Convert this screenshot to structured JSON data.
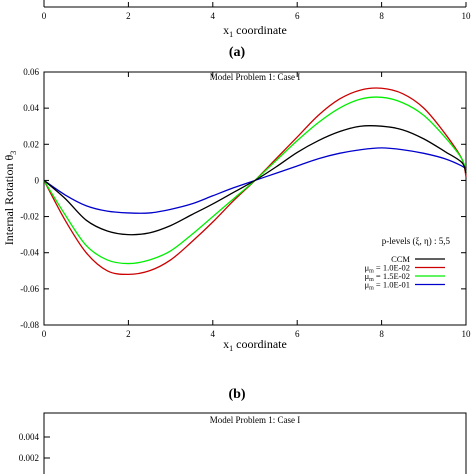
{
  "top_panel": {
    "x_ticks": [
      "0",
      "2",
      "4",
      "6",
      "8",
      "10"
    ],
    "xlabel_main": "x",
    "xlabel_sub": "1",
    "xlabel_rest": " coordinate",
    "caption": "(a)"
  },
  "middle_panel": {
    "caption": "(b)",
    "xlabel_main": "x",
    "xlabel_sub": "1",
    "xlabel_rest": " coordinate",
    "ylabel_main": "Internal Rotation θ",
    "ylabel_sub": "3",
    "legend": {
      "title": "p-levels (ξ, η) : 5,5",
      "entries": [
        {
          "pre": "",
          "sym": "",
          "sub": "",
          "label": "CCM",
          "color": "#000000"
        },
        {
          "pre": "",
          "sym": "μ",
          "sub": "m",
          "label": " = 1.0E-02",
          "color": "#cc0000"
        },
        {
          "pre": "",
          "sym": "μ",
          "sub": "m",
          "label": " = 1.5E-02",
          "color": "#00ee00"
        },
        {
          "pre": "",
          "sym": "μ",
          "sub": "m",
          "label": " = 1.0E-01",
          "color": "#0000cc"
        }
      ]
    }
  },
  "bottom_panel": {
    "title": "Model Problem 1: Case I",
    "y_ticks": [
      "0.004",
      "0.002"
    ]
  },
  "chart_data": {
    "type": "line",
    "title": "Model Problem 1: Case I",
    "xlabel": "x1 coordinate",
    "ylabel": "Internal Rotation θ3",
    "xlim": [
      0,
      10
    ],
    "ylim": [
      -0.08,
      0.06
    ],
    "x_ticks": [
      0,
      2,
      4,
      6,
      8,
      10
    ],
    "y_ticks": [
      -0.08,
      -0.06,
      -0.04,
      -0.02,
      0,
      0.02,
      0.04,
      0.06
    ],
    "x_tick_labels": [
      "0",
      "2",
      "4",
      "6",
      "8",
      "10"
    ],
    "y_tick_labels": [
      "-0.08",
      "-0.06",
      "-0.04",
      "-0.02",
      "0",
      "0.02",
      "0.04",
      "0.06"
    ],
    "x": [
      0,
      0.5,
      1,
      1.5,
      2,
      2.5,
      3,
      3.5,
      4,
      4.5,
      5,
      5.5,
      6,
      6.5,
      7,
      7.5,
      8,
      8.5,
      9,
      9.5,
      9.9,
      10
    ],
    "series": [
      {
        "name": "CCM",
        "color": "#000000",
        "values": [
          0,
          -0.01,
          -0.022,
          -0.028,
          -0.03,
          -0.029,
          -0.025,
          -0.019,
          -0.013,
          -0.0065,
          0,
          0.0075,
          0.0155,
          0.022,
          0.027,
          0.03,
          0.03,
          0.028,
          0.023,
          0.016,
          0.01,
          0.004
        ]
      },
      {
        "name": "μm = 1.0E-02",
        "color": "#cc0000",
        "values": [
          0,
          -0.022,
          -0.04,
          -0.05,
          -0.052,
          -0.05,
          -0.044,
          -0.034,
          -0.023,
          -0.011,
          0,
          0.012,
          0.024,
          0.036,
          0.045,
          0.05,
          0.051,
          0.048,
          0.04,
          0.026,
          0.012,
          0.002
        ]
      },
      {
        "name": "μm = 1.5E-02",
        "color": "#00ee00",
        "values": [
          0,
          -0.019,
          -0.036,
          -0.044,
          -0.046,
          -0.044,
          -0.039,
          -0.03,
          -0.02,
          -0.01,
          0,
          0.011,
          0.022,
          0.032,
          0.04,
          0.045,
          0.046,
          0.043,
          0.036,
          0.024,
          0.012,
          0.004
        ]
      },
      {
        "name": "μm = 1.0E-01",
        "color": "#0000cc",
        "values": [
          0,
          -0.008,
          -0.014,
          -0.017,
          -0.018,
          -0.018,
          -0.016,
          -0.013,
          -0.0085,
          -0.004,
          0,
          0.004,
          0.008,
          0.012,
          0.015,
          0.017,
          0.018,
          0.017,
          0.015,
          0.012,
          0.008,
          0.006
        ]
      }
    ],
    "grid": false,
    "legend_position": "center-right"
  }
}
